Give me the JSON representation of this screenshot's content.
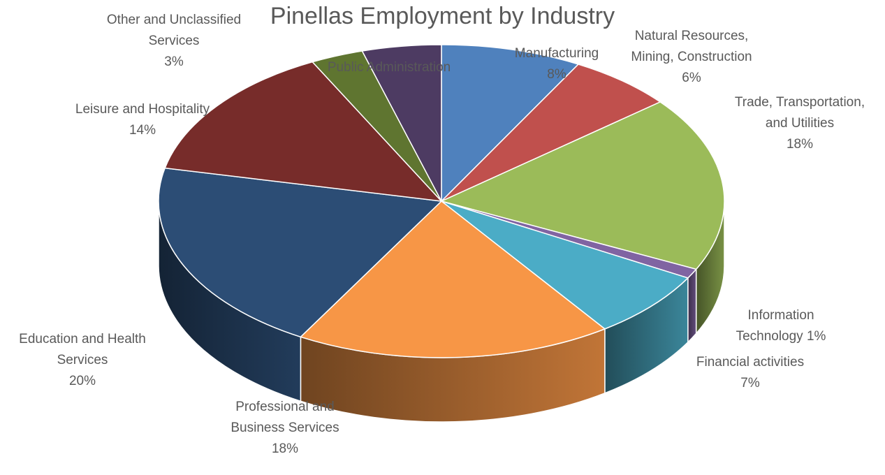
{
  "chart_data": {
    "type": "pie",
    "title": "Pinellas Employment by Industry",
    "slices": [
      {
        "label_lines": [
          "Manufacturing"
        ],
        "percent_label": "8%",
        "value": 8,
        "color": "#4F81BD"
      },
      {
        "label_lines": [
          "Natural Resources,",
          "Mining, Construction"
        ],
        "percent_label": "6%",
        "value": 6,
        "color": "#C0504D"
      },
      {
        "label_lines": [
          "Trade, Transportation,",
          "and Utilities"
        ],
        "percent_label": "18%",
        "value": 18,
        "color": "#9BBB59"
      },
      {
        "label_lines": [
          "Information",
          "Technology 1%"
        ],
        "percent_label": "",
        "value": 1,
        "color": "#8064A2"
      },
      {
        "label_lines": [
          "Financial activities"
        ],
        "percent_label": "7%",
        "value": 7,
        "color": "#4BACC6"
      },
      {
        "label_lines": [
          "Professional and",
          "Business Services"
        ],
        "percent_label": "18%",
        "value": 18,
        "color": "#F79646"
      },
      {
        "label_lines": [
          "Education and Health",
          "Services"
        ],
        "percent_label": "20%",
        "value": 20,
        "color": "#2C4D75"
      },
      {
        "label_lines": [
          "Leisure and Hospitality"
        ],
        "percent_label": "14%",
        "value": 14,
        "color": "#772C2A"
      },
      {
        "label_lines": [
          "Other and Unclassified",
          "Services"
        ],
        "percent_label": "3%",
        "value": 3,
        "color": "#5F7530"
      },
      {
        "label_lines": [
          "Public Administration"
        ],
        "percent_label": "",
        "value": 4.5,
        "color": "#4D3B62"
      }
    ]
  }
}
